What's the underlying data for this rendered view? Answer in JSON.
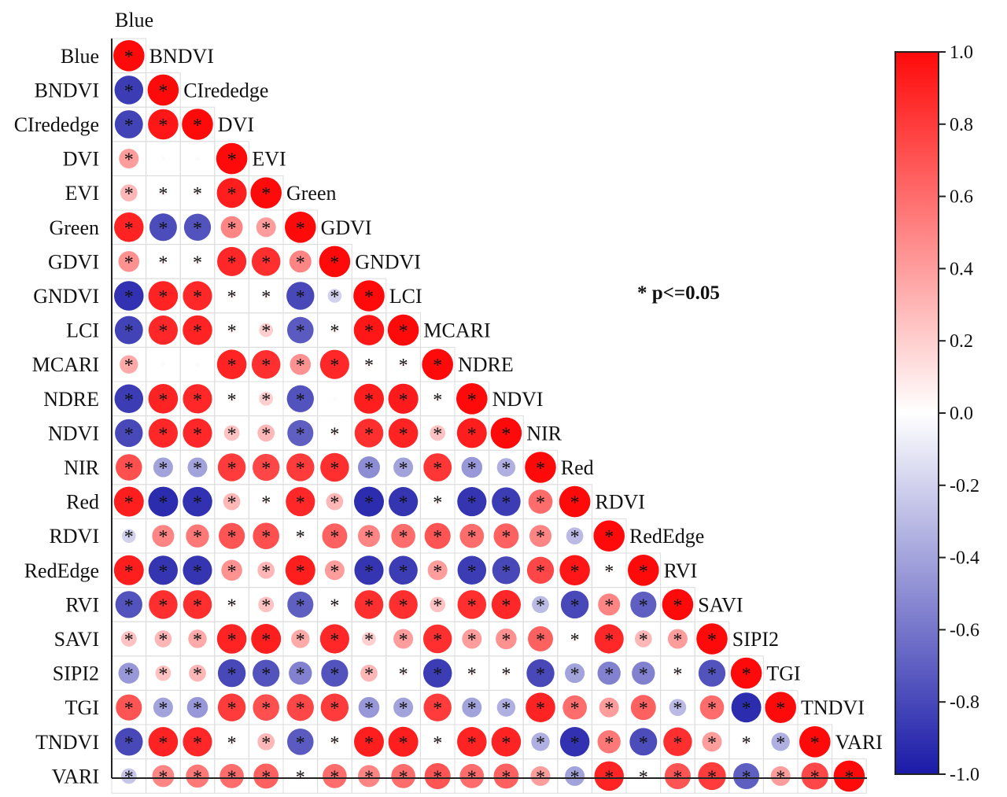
{
  "chart_data": {
    "type": "heatmap",
    "variables": [
      "Blue",
      "BNDVI",
      "CIrededge",
      "DVI",
      "EVI",
      "Green",
      "GDVI",
      "GNDVI",
      "LCI",
      "MCARI",
      "NDRE",
      "NDVI",
      "NIR",
      "Red",
      "RDVI",
      "RedEdge",
      "RVI",
      "SAVI",
      "SIPI2",
      "TGI",
      "TNDVI",
      "VARI"
    ],
    "top_label": "Blue",
    "significance_note": "* p<=0.05",
    "colorbar": {
      "min": -1.0,
      "max": 1.0,
      "ticks": [
        "1.0",
        "0.8",
        "0.6",
        "0.4",
        "0.2",
        "0.0",
        "-0.2",
        "-0.4",
        "-0.6",
        "-0.8",
        "-1.0"
      ],
      "colors": [
        "#1a1aa8",
        "#ffffff",
        "#ff0a0a"
      ]
    },
    "correlations_lower": [
      [
        1.0
      ],
      [
        -0.85,
        1.0
      ],
      [
        -0.82,
        0.95,
        1.0
      ],
      [
        0.4,
        0.02,
        0.02,
        1.0
      ],
      [
        0.3,
        0.05,
        0.05,
        0.92,
        1.0
      ],
      [
        0.9,
        -0.78,
        -0.75,
        0.5,
        0.4,
        1.0
      ],
      [
        0.45,
        0.05,
        0.05,
        0.88,
        0.85,
        0.5,
        1.0
      ],
      [
        -0.9,
        0.9,
        0.88,
        0.05,
        0.05,
        -0.8,
        -0.2,
        1.0
      ],
      [
        -0.82,
        0.88,
        0.9,
        0.05,
        0.2,
        -0.72,
        0.05,
        0.95,
        1.0
      ],
      [
        0.35,
        0.02,
        0.02,
        0.9,
        0.85,
        0.45,
        0.88,
        0.05,
        0.05,
        1.0
      ],
      [
        -0.85,
        0.9,
        0.88,
        0.05,
        0.2,
        -0.75,
        0.02,
        0.92,
        0.93,
        0.05,
        1.0
      ],
      [
        -0.8,
        0.88,
        0.88,
        0.25,
        0.3,
        -0.7,
        0.05,
        0.85,
        0.9,
        0.25,
        0.92,
        1.0
      ],
      [
        0.72,
        -0.4,
        -0.4,
        0.8,
        0.75,
        0.8,
        0.85,
        -0.5,
        -0.4,
        0.82,
        -0.45,
        -0.35,
        1.0
      ],
      [
        0.92,
        -0.92,
        -0.9,
        0.3,
        0.05,
        0.88,
        0.3,
        -0.92,
        -0.88,
        0.05,
        -0.88,
        -0.85,
        0.6,
        1.0
      ],
      [
        -0.2,
        0.5,
        0.55,
        0.7,
        0.72,
        0.05,
        0.65,
        0.5,
        0.6,
        0.7,
        0.6,
        0.65,
        0.5,
        -0.3,
        1.0
      ],
      [
        0.92,
        -0.88,
        -0.88,
        0.45,
        0.3,
        0.92,
        0.4,
        -0.88,
        -0.85,
        0.4,
        -0.85,
        -0.8,
        0.75,
        0.95,
        0.05,
        1.0
      ],
      [
        -0.75,
        0.85,
        0.85,
        0.05,
        0.25,
        -0.7,
        0.05,
        0.85,
        0.85,
        0.25,
        0.85,
        0.88,
        -0.3,
        -0.8,
        0.5,
        -0.7,
        1.0
      ],
      [
        0.25,
        0.3,
        0.35,
        0.9,
        0.92,
        0.35,
        0.88,
        0.2,
        0.4,
        0.85,
        0.4,
        0.45,
        0.65,
        0.05,
        0.88,
        0.3,
        0.4,
        1.0
      ],
      [
        -0.45,
        0.25,
        0.3,
        -0.8,
        -0.75,
        -0.55,
        -0.75,
        0.3,
        0.05,
        -0.85,
        0.05,
        0.05,
        -0.8,
        -0.4,
        -0.55,
        -0.55,
        0.05,
        -0.75,
        1.0
      ],
      [
        0.7,
        -0.4,
        -0.45,
        0.8,
        0.72,
        0.75,
        0.8,
        -0.45,
        -0.4,
        0.8,
        -0.4,
        -0.35,
        0.9,
        0.6,
        0.4,
        0.65,
        -0.3,
        0.6,
        -0.92,
        1.0
      ],
      [
        -0.8,
        0.9,
        0.88,
        0.05,
        0.3,
        -0.72,
        0.05,
        0.92,
        0.92,
        0.05,
        0.9,
        0.9,
        -0.35,
        -0.9,
        0.55,
        -0.78,
        0.85,
        0.4,
        0.05,
        -0.35,
        1.0
      ],
      [
        -0.25,
        0.5,
        0.55,
        0.6,
        0.65,
        0.05,
        0.6,
        0.5,
        0.6,
        0.7,
        0.6,
        0.65,
        0.4,
        -0.4,
        0.9,
        0.05,
        0.7,
        0.8,
        -0.7,
        0.4,
        0.75,
        1.0
      ]
    ]
  }
}
